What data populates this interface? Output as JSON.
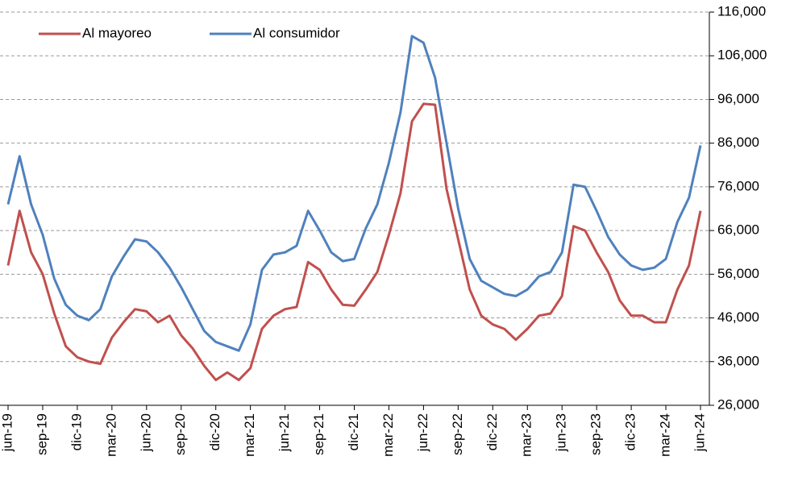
{
  "chart_data": {
    "type": "line",
    "categories": [
      "jun-19",
      null,
      null,
      "sep-19",
      null,
      null,
      "dic-19",
      null,
      null,
      "mar-20",
      null,
      null,
      "jun-20",
      null,
      null,
      "sep-20",
      null,
      null,
      "dic-20",
      null,
      null,
      "mar-21",
      null,
      null,
      "jun-21",
      null,
      null,
      "sep-21",
      null,
      null,
      "dic-21",
      null,
      null,
      "mar-22",
      null,
      null,
      "jun-22",
      null,
      null,
      "sep-22",
      null,
      null,
      "dic-22",
      null,
      null,
      "mar-23",
      null,
      null,
      "jun-23",
      null,
      null,
      "sep-23",
      null,
      null,
      "dic-23",
      null,
      null,
      "mar-24",
      null,
      null,
      "jun-24"
    ],
    "series": [
      {
        "name": "Al mayoreo",
        "color": "#c0504d",
        "values": [
          58000,
          70500,
          61000,
          56000,
          47000,
          39500,
          37000,
          36000,
          35500,
          41500,
          45000,
          48000,
          47500,
          45000,
          46500,
          42000,
          39000,
          35000,
          31800,
          33500,
          31800,
          34500,
          43500,
          46500,
          48000,
          48500,
          58800,
          57000,
          52500,
          49000,
          48800,
          52500,
          56500,
          65000,
          74500,
          91000,
          95000,
          94800,
          75500,
          64000,
          52500,
          46500,
          44500,
          43500,
          41000,
          43500,
          46500,
          47000,
          51000,
          67000,
          66000,
          61000,
          56500,
          50000,
          46500,
          46500,
          45000,
          45000,
          52500,
          58000,
          70500
        ]
      },
      {
        "name": "Al consumidor",
        "color": "#4f81bd",
        "values": [
          72000,
          83000,
          72000,
          65000,
          55000,
          49000,
          46500,
          45500,
          48000,
          55500,
          60000,
          64000,
          63500,
          61000,
          57500,
          53000,
          48000,
          43000,
          40500,
          39500,
          38500,
          44500,
          57000,
          60500,
          61000,
          62500,
          70500,
          66000,
          61000,
          59000,
          59500,
          66500,
          72000,
          81500,
          93000,
          110500,
          109000,
          101000,
          86000,
          71000,
          59500,
          54500,
          53000,
          51500,
          51000,
          52500,
          55500,
          56500,
          61000,
          76500,
          76000,
          70500,
          64500,
          60500,
          58000,
          57000,
          57500,
          59500,
          68000,
          73500,
          85500
        ]
      }
    ],
    "ylim": [
      26000,
      116000
    ],
    "yticks": [
      {
        "value": 26000,
        "label": "26,000"
      },
      {
        "value": 36000,
        "label": "36,000"
      },
      {
        "value": 46000,
        "label": "46,000"
      },
      {
        "value": 56000,
        "label": "56,000"
      },
      {
        "value": 66000,
        "label": "66,000"
      },
      {
        "value": 76000,
        "label": "76,000"
      },
      {
        "value": 86000,
        "label": "86,000"
      },
      {
        "value": 96000,
        "label": "96,000"
      },
      {
        "value": 106000,
        "label": "106,000"
      },
      {
        "value": 116000,
        "label": "116,000"
      }
    ],
    "grid": true,
    "legend": "top-left"
  }
}
